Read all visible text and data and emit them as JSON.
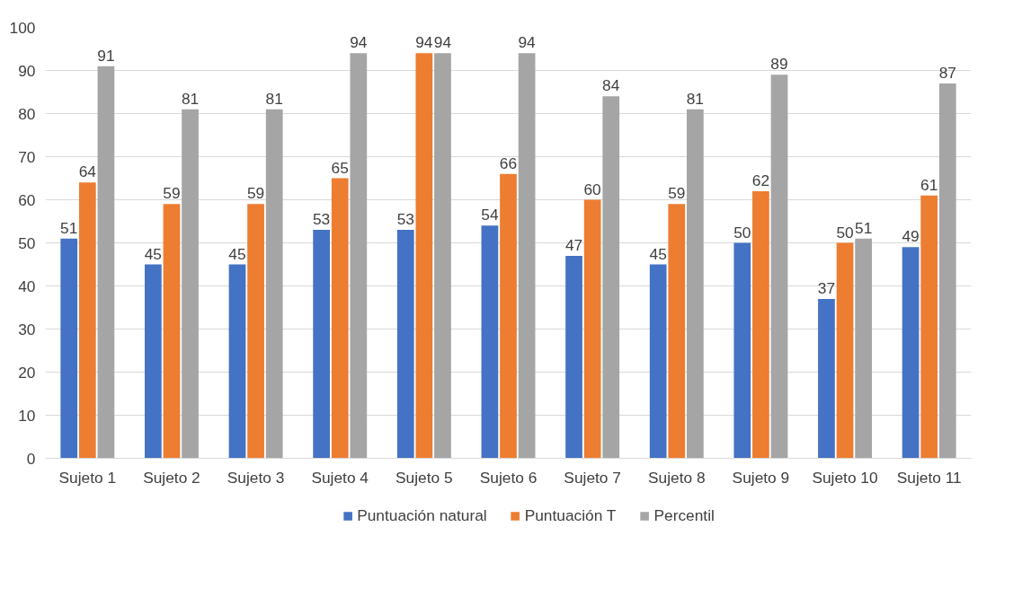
{
  "chart_data": {
    "type": "bar",
    "categories": [
      "Sujeto 1",
      "Sujeto 2",
      "Sujeto 3",
      "Sujeto 4",
      "Sujeto 5",
      "Sujeto 6",
      "Sujeto 7",
      "Sujeto 8",
      "Sujeto 9",
      "Sujeto 10",
      "Sujeto 11"
    ],
    "series": [
      {
        "name": "Puntuación natural",
        "color": "#4472c4",
        "values": [
          51,
          45,
          45,
          53,
          53,
          54,
          47,
          45,
          50,
          37,
          49
        ]
      },
      {
        "name": "Puntuación T",
        "color": "#ed7d31",
        "values": [
          64,
          59,
          59,
          65,
          94,
          66,
          60,
          59,
          62,
          50,
          61
        ]
      },
      {
        "name": "Percentil",
        "color": "#a5a5a5",
        "values": [
          91,
          81,
          81,
          94,
          94,
          94,
          84,
          81,
          89,
          51,
          87
        ]
      }
    ],
    "ylim": [
      0,
      100
    ],
    "yticks": [
      0,
      10,
      20,
      30,
      40,
      50,
      60,
      70,
      80,
      90,
      100
    ],
    "grid": "y",
    "legend": "bottom",
    "data_labels": true
  }
}
